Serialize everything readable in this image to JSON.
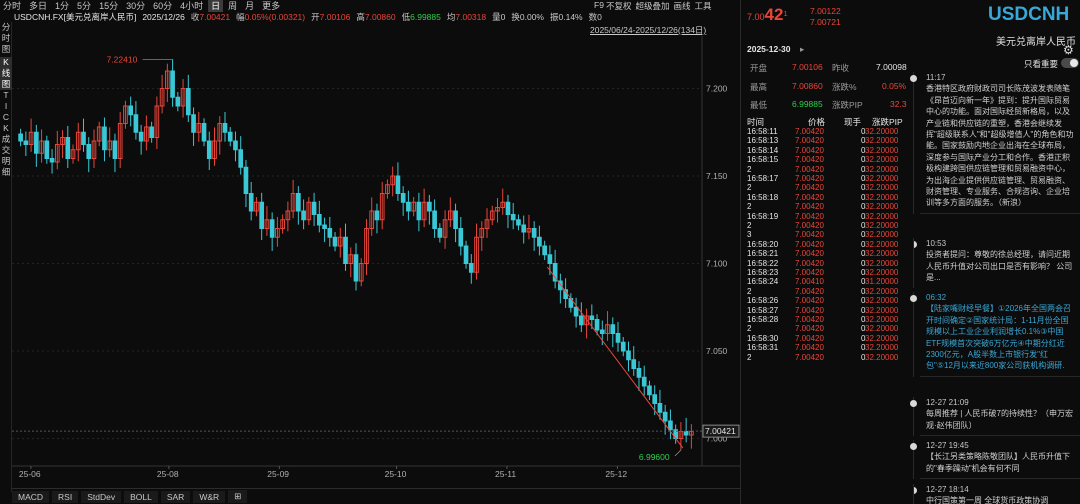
{
  "toolbar": {
    "periods": [
      "分时",
      "多日",
      "1分",
      "5分",
      "15分",
      "30分",
      "60分",
      "4小时",
      "日",
      "周",
      "月",
      "更多"
    ],
    "active": "日",
    "f9": "F9",
    "right": [
      "不复权",
      "超级叠加",
      "画线",
      "工具"
    ]
  },
  "left_tabs": [
    "分",
    "时",
    "图",
    "K",
    "线",
    "图",
    "T",
    "I",
    "C",
    "K",
    "成",
    "交",
    "明",
    "细"
  ],
  "info": {
    "name": "USDCNH.FX[美元兑离岸人民币]",
    "date": "2025/12/26",
    "close_label": "收",
    "close": "7.00421",
    "chg_label": "幅",
    "chg": "0.05%(0.00321)",
    "open_label": "开",
    "open": "7.00106",
    "high_label": "高",
    "high": "7.00860",
    "low_label": "低",
    "low": "6.99885",
    "avg_label": "均",
    "avg": "7.00318",
    "vol_label": "量",
    "vol": "0",
    "turnover_label": "换",
    "turnover": "0.00%",
    "amp_label": "振",
    "amp": "0.14%",
    "count_label": "数",
    "count": "0"
  },
  "range_label": "2025/06/24-2025/12/26(134日)",
  "chart_data": {
    "type": "candlestick",
    "ylim": [
      6.99,
      7.23
    ],
    "yticks": [
      "7.200",
      "7.150",
      "7.100",
      "7.050",
      "7.000"
    ],
    "xticks": [
      "25-06",
      "25-08",
      "25-09",
      "25-10",
      "25-11",
      "25-12"
    ],
    "high_label": "7.22410",
    "low_label": "6.99600",
    "last": "7.00421",
    "series": [
      {
        "name": "USDCNH",
        "close_trend": [
          7.17,
          7.168,
          7.175,
          7.163,
          7.17,
          7.16,
          7.158,
          7.168,
          7.172,
          7.16,
          7.165,
          7.175,
          7.168,
          7.16,
          7.17,
          7.178,
          7.165,
          7.17,
          7.16,
          7.18,
          7.19,
          7.185,
          7.175,
          7.17,
          7.178,
          7.172,
          7.19,
          7.2,
          7.21,
          7.195,
          7.19,
          7.2,
          7.185,
          7.175,
          7.18,
          7.17,
          7.16,
          7.17,
          7.18,
          7.175,
          7.17,
          7.165,
          7.155,
          7.14,
          7.13,
          7.135,
          7.12,
          7.125,
          7.115,
          7.12,
          7.125,
          7.13,
          7.14,
          7.13,
          7.125,
          7.135,
          7.128,
          7.122,
          7.12,
          7.115,
          7.11,
          7.115,
          7.1,
          7.105,
          7.09,
          7.1,
          7.12,
          7.13,
          7.125,
          7.14,
          7.145,
          7.15,
          7.14,
          7.135,
          7.13,
          7.135,
          7.125,
          7.135,
          7.13,
          7.12,
          7.115,
          7.125,
          7.13,
          7.12,
          7.11,
          7.1,
          7.095,
          7.115,
          7.12,
          7.125,
          7.13,
          7.132,
          7.135,
          7.128,
          7.125,
          7.122,
          7.118,
          7.12,
          7.115,
          7.11,
          7.105,
          7.1,
          7.09,
          7.085,
          7.08,
          7.075,
          7.07,
          7.065,
          7.07,
          7.068,
          7.062,
          7.06,
          7.065,
          7.06,
          7.055,
          7.05,
          7.045,
          7.04,
          7.035,
          7.03,
          7.025,
          7.02,
          7.015,
          7.01,
          7.005,
          7.0,
          7.004,
          7.002,
          7.004
        ]
      }
    ]
  },
  "quote": {
    "symbol": "USDCNH",
    "name": "美元兑离岸人民币",
    "big_main": "7.00",
    "big_tail": "42",
    "big_sup": "1",
    "bid": "7.00122",
    "ask": "7.00721",
    "date": "2025-12-30",
    "arrow": "▸",
    "open_l": "开盘",
    "open": "7.00106",
    "prev_l": "昨收",
    "prev": "7.00098",
    "high_l": "最高",
    "high": "7.00860",
    "chgpct_l": "涨跌%",
    "chgpct": "0.05%",
    "low_l": "最低",
    "low": "6.99885",
    "pip_l": "涨跌PIP",
    "pip": "32.3"
  },
  "ticks": {
    "headers": [
      "时间",
      "价格",
      "现手",
      "涨跌PIP"
    ],
    "rows": [
      [
        "16:58:11",
        "7.00420",
        "0",
        "32.20000"
      ],
      [
        "16:58:13",
        "7.00420",
        "0",
        "32.20000"
      ],
      [
        "16:58:14",
        "7.00420",
        "0",
        "32.20000"
      ],
      [
        "16:58:15",
        "7.00420",
        "0",
        "32.20000"
      ],
      [
        "2",
        "7.00420",
        "0",
        "32.20000"
      ],
      [
        "16:58:17",
        "7.00420",
        "0",
        "32.20000"
      ],
      [
        "2",
        "7.00420",
        "0",
        "32.20000"
      ],
      [
        "16:58:18",
        "7.00420",
        "0",
        "32.20000"
      ],
      [
        "2",
        "7.00420",
        "0",
        "32.20000"
      ],
      [
        "16:58:19",
        "7.00420",
        "0",
        "32.20000"
      ],
      [
        "2",
        "7.00420",
        "0",
        "32.20000"
      ],
      [
        "3",
        "7.00420",
        "0",
        "32.20000"
      ],
      [
        "16:58:20",
        "7.00420",
        "0",
        "32.20000"
      ],
      [
        "16:58:21",
        "7.00420",
        "0",
        "32.20000"
      ],
      [
        "16:58:22",
        "7.00420",
        "0",
        "32.20000"
      ],
      [
        "16:58:23",
        "7.00420",
        "0",
        "32.20000"
      ],
      [
        "16:58:24",
        "7.00410",
        "0",
        "31.20000"
      ],
      [
        "2",
        "7.00420",
        "0",
        "32.20000"
      ],
      [
        "16:58:26",
        "7.00420",
        "0",
        "32.20000"
      ],
      [
        "16:58:27",
        "7.00420",
        "0",
        "32.20000"
      ],
      [
        "16:58:28",
        "7.00420",
        "0",
        "32.20000"
      ],
      [
        "2",
        "7.00420",
        "0",
        "32.20000"
      ],
      [
        "16:58:30",
        "7.00420",
        "0",
        "32.20000"
      ],
      [
        "16:58:31",
        "7.00420",
        "0",
        "32.20000"
      ],
      [
        "2",
        "7.00420",
        "0",
        "32.20000"
      ]
    ]
  },
  "news": {
    "toggle_label": "只看重要",
    "items": [
      {
        "time": "11:17",
        "text": "香港特区政府财政司司长陈茂波发表随笔《昂首迈向新一年》提到：提升国际贸易中心的功能。面对国际经贸新格局，以及产业链和供应链的重塑，香港会继续发挥\"超级联系人\"和\"超级增值人\"的角色和功能。国家鼓励内地企业出海在全球布局，深度参与国际产业分工和合作。香港正积极构建跨国供应链管理和贸易融资中心，为出海企业提供供应链管理、贸易融资、财资管理、专业服务、合规咨询、企业培训等多方面的服务。（新浪）",
        "blue": false
      },
      {
        "time": "10:53",
        "text": "投资者提问：尊敬的徐总经理，请问近期人民币升值对公司出口是否有影响？ 公司是...",
        "blue": false
      },
      {
        "time": "06:32",
        "text": "【陆家嘴财经早餐】①2026年全国两会召开时间确定②国家统计局：1-11月份全国规模以上工业企业利润增长0.1%③中国ETF规模首次突破6万亿元④中期分红近2300亿元，A股半数上市银行发\"红包\"⑤12月以来近800家公司获机构调研.",
        "blue": true
      },
      {
        "time": "12-27 21:09",
        "text": "每周推荐 | 人民币破7的持续性？（申万宏观·赵伟团队）",
        "blue": false
      },
      {
        "time": "12-27 19:45",
        "text": "【长江另类策略陈敬团队】人民币升值下的\"春季躁动\"机会有何不同",
        "blue": false
      },
      {
        "time": "12-27 18:14",
        "text": "中行国策第一周 全球货币政策协调",
        "blue": false
      }
    ]
  },
  "bottom_tabs": [
    "MACD",
    "RSI",
    "StdDev",
    "BOLL",
    "SAR",
    "W&R"
  ],
  "colors": {
    "up": "#e8463a",
    "down": "#3ac8d6",
    "accent": "#2fcf4c",
    "symbol": "#3aa8d6"
  }
}
